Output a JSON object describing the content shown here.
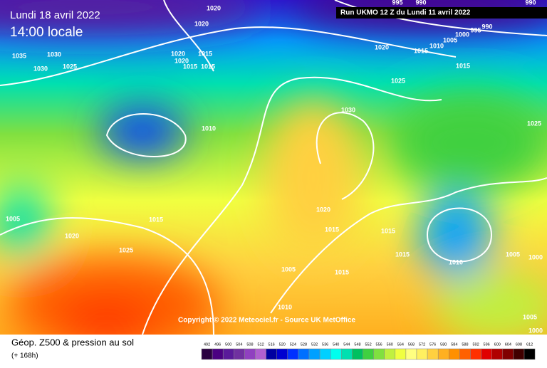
{
  "header": {
    "date": "Lundi 18 avril 2022",
    "time": "14:00 locale",
    "run": "Run UKMO 12 Z du Lundi 11 avril 2022"
  },
  "copyright": "Copyright © 2022 Meteociel.fr - Source UK MetOffice",
  "footer": {
    "title": "Géop. Z500 & pression au sol",
    "subtitle": "(+ 168h)"
  },
  "isobar_labels": [
    "1020",
    "1020",
    "995",
    "990",
    "990",
    "1035",
    "1030",
    "1025",
    "1030",
    "1020",
    "1015",
    "1020",
    "1015",
    "1015",
    "990",
    "995",
    "1000",
    "1005",
    "1010",
    "1015",
    "1020",
    "1015",
    "1025",
    "1030",
    "1010",
    "1025",
    "1020",
    "1015",
    "1015",
    "1015",
    "1025",
    "1020",
    "1015",
    "1010",
    "1005",
    "1000",
    "1005",
    "1015",
    "1010",
    "1005",
    "1000",
    "1005"
  ],
  "scale": {
    "values": [
      492,
      496,
      500,
      504,
      508,
      512,
      516,
      520,
      524,
      528,
      532,
      536,
      540,
      544,
      548,
      552,
      556,
      560,
      564,
      568,
      572,
      576,
      580,
      584,
      588,
      592,
      596,
      600,
      604,
      608,
      612
    ],
    "colors": [
      "#2a0040",
      "#4b0082",
      "#5a1a9a",
      "#7030a0",
      "#9040c0",
      "#b060d0",
      "#0000a0",
      "#0000d0",
      "#0030ff",
      "#0070ff",
      "#00a0ff",
      "#00d0ff",
      "#00ffee",
      "#00e0b0",
      "#00c060",
      "#40d040",
      "#80e040",
      "#c0f040",
      "#f0ff40",
      "#ffff80",
      "#fff060",
      "#ffd040",
      "#ffb020",
      "#ff9000",
      "#ff6000",
      "#ff3000",
      "#e00000",
      "#b00000",
      "#800000",
      "#400000",
      "#000000"
    ]
  }
}
